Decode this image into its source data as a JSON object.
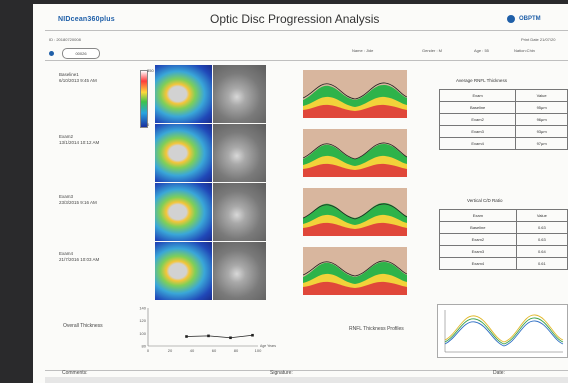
{
  "header": {
    "brand": "NIDcean360plus",
    "title": "Optic Disc Progression Analysis",
    "partner_logo": "OBPTM",
    "id_line": "ID : 20180720008",
    "date_line": "Print Date 21/07/20",
    "patient_chip": "00026",
    "name": "Name : Jide",
    "gender": "Gender : M",
    "age": "Age : 55",
    "nation": "Nation:Chin"
  },
  "exams": [
    {
      "label": "Baseline1",
      "date": "6/10/2013  9:45 AM"
    },
    {
      "label": "Exam2",
      "date": "13/1/2014  10:12 AM"
    },
    {
      "label": "Exam3",
      "date": "23/3/2015  9:16 AM"
    },
    {
      "label": "Exam4",
      "date": "21/7/2016  10:03 AM"
    }
  ],
  "scale": {
    "top": "350",
    "bottom": "0"
  },
  "avg_table": {
    "title": "Average RNFL Thickness",
    "headers": [
      "Exam",
      "Value"
    ],
    "rows": [
      [
        "Baseline",
        "95μm"
      ],
      [
        "Exam2",
        "96μm"
      ],
      [
        "Exam3",
        "93μm"
      ],
      [
        "Exam4",
        "97μm"
      ]
    ]
  },
  "cd_table": {
    "title": "Vertical C/D Ratio",
    "headers": [
      "Exam",
      "Value"
    ],
    "rows": [
      [
        "Baseline",
        "0.63"
      ],
      [
        "Exam2",
        "0.63"
      ],
      [
        "Exam3",
        "0.64"
      ],
      [
        "Exam4",
        "0.61"
      ]
    ]
  },
  "overall": {
    "label": "Overall Thickness",
    "y_ticks": [
      "140",
      "120",
      "100",
      "80"
    ],
    "x_ticks": [
      "0",
      "20",
      "40",
      "60",
      "80",
      "100"
    ],
    "x_unit": "Age Years",
    "chart_data": {
      "type": "line",
      "x": [
        35,
        55,
        75,
        95
      ],
      "y": [
        95,
        96,
        93,
        97
      ],
      "xlim": [
        0,
        100
      ],
      "ylim": [
        80,
        140
      ]
    }
  },
  "profile": {
    "label": "RNFL Thickness Profiles"
  },
  "footer": {
    "comments": "Comments:",
    "signature": "Signature:",
    "date": "Date:"
  },
  "colors": {
    "accent": "#1f5fa8",
    "normal": "#2eb34a",
    "border": "#f2d23a",
    "abnormal": "#e0473a",
    "bg_band": "#d8b69e"
  }
}
